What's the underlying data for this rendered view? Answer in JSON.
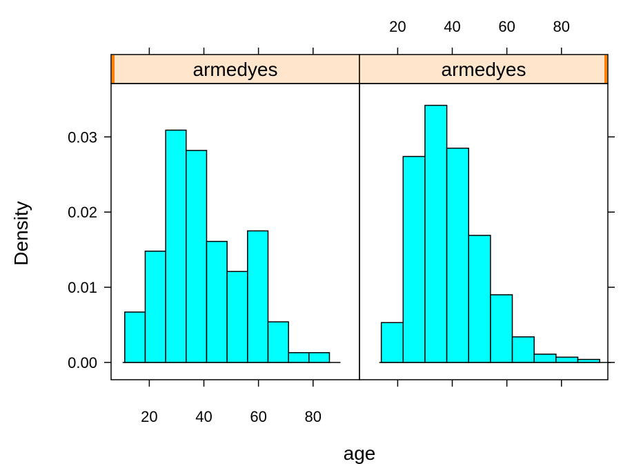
{
  "chart_data": {
    "type": "bar",
    "xlabel": "age",
    "ylabel": "Density",
    "xlim": [
      6,
      97
    ],
    "ylim": [
      -0.0023,
      0.0371
    ],
    "x_ticks": [
      20,
      40,
      60,
      80
    ],
    "y_ticks": [
      0.0,
      0.01,
      0.02,
      0.03
    ],
    "y_tick_labels": [
      "0.00",
      "0.01",
      "0.02",
      "0.03"
    ],
    "bar_color": "#00FFFF",
    "strip_color": "#FFE5CC",
    "strip_marker_color": "#FF7F00",
    "panels": [
      {
        "strip_label": "armedyes",
        "bin_edges": [
          11,
          18.5,
          26,
          33.5,
          41,
          48.5,
          56,
          63.5,
          71,
          78.5,
          86
        ],
        "densities": [
          0.0067,
          0.0148,
          0.0309,
          0.0282,
          0.0161,
          0.0121,
          0.0175,
          0.0054,
          0.0013,
          0.0013
        ]
      },
      {
        "strip_label": "armedyes",
        "bin_edges": [
          14,
          22,
          30,
          38,
          46,
          54,
          62,
          70,
          78,
          86,
          94
        ],
        "densities": [
          0.0053,
          0.0274,
          0.0342,
          0.0285,
          0.0169,
          0.009,
          0.0034,
          0.0011,
          0.0007,
          0.0004
        ]
      }
    ]
  }
}
